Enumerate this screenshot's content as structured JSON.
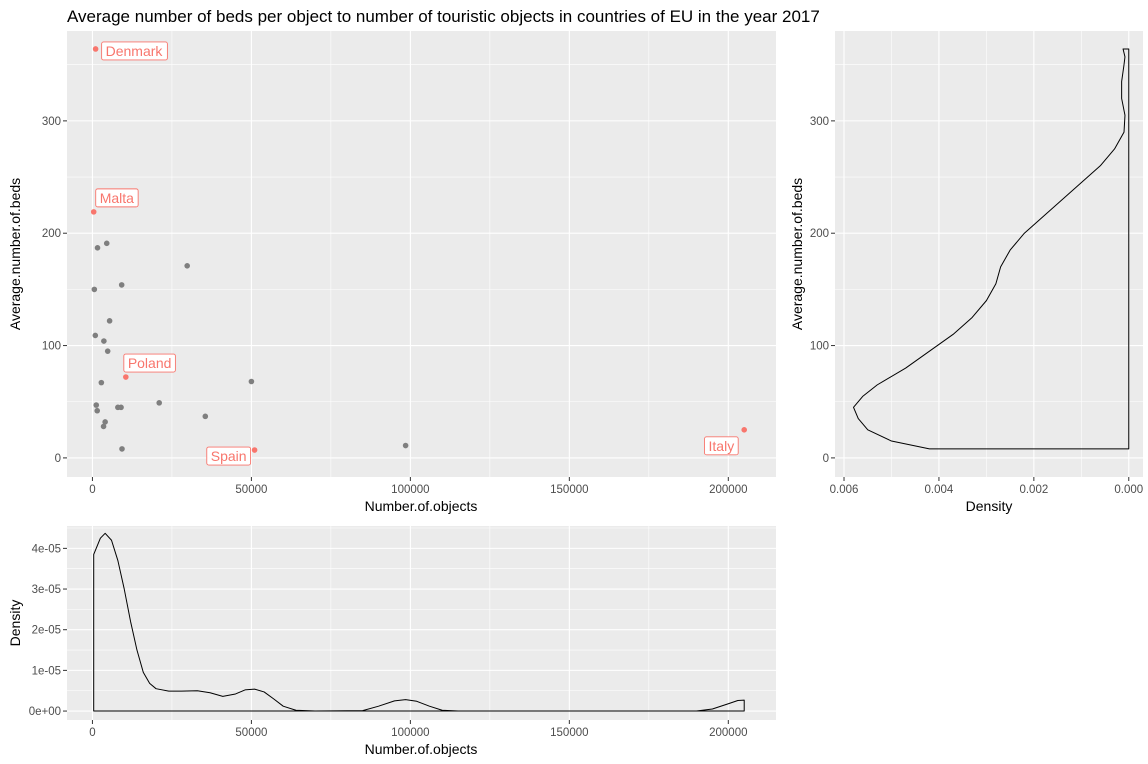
{
  "figure": {
    "title": "Average number of beds per object to number of touristic objects in countries of EU in the year 2017"
  },
  "colors": {
    "panel_bg": "#ebebeb",
    "grid_major": "#ffffff",
    "point_default": "#7f7f7f",
    "point_highlight": "#f8766d",
    "label_border": "#f8766d",
    "label_bg": "#ffffff",
    "density_line": "#000000",
    "tick_text": "#4d4d4d"
  },
  "chart_data": [
    {
      "id": "scatter",
      "type": "scatter",
      "xlabel": "Number.of.objects",
      "ylabel": "Average.number.of.beds",
      "xlim": [
        -8000,
        215000
      ],
      "ylim": [
        -17,
        380
      ],
      "xticks": [
        0,
        50000,
        100000,
        150000,
        200000
      ],
      "xtick_labels": [
        "0",
        "50000",
        "100000",
        "150000",
        "200000"
      ],
      "yticks": [
        0,
        100,
        200,
        300
      ],
      "ytick_labels": [
        "0",
        "100",
        "200",
        "300"
      ],
      "grid": true,
      "points": [
        {
          "x": 1000,
          "y": 364,
          "label": "Denmark",
          "highlight": true
        },
        {
          "x": 400,
          "y": 219,
          "label": "Malta",
          "highlight": true
        },
        {
          "x": 10500,
          "y": 72,
          "label": "Poland",
          "highlight": true
        },
        {
          "x": 51000,
          "y": 7,
          "label": "Spain",
          "highlight": true
        },
        {
          "x": 205000,
          "y": 25,
          "label": "Italy",
          "highlight": true
        },
        {
          "x": 1600,
          "y": 187,
          "highlight": false
        },
        {
          "x": 4500,
          "y": 191,
          "highlight": false
        },
        {
          "x": 29800,
          "y": 171,
          "highlight": false
        },
        {
          "x": 600,
          "y": 150,
          "highlight": false
        },
        {
          "x": 9200,
          "y": 154,
          "highlight": false
        },
        {
          "x": 5400,
          "y": 122,
          "highlight": false
        },
        {
          "x": 900,
          "y": 109,
          "highlight": false
        },
        {
          "x": 3600,
          "y": 104,
          "highlight": false
        },
        {
          "x": 4800,
          "y": 95,
          "highlight": false
        },
        {
          "x": 2800,
          "y": 67,
          "highlight": false
        },
        {
          "x": 50000,
          "y": 68,
          "highlight": false
        },
        {
          "x": 1200,
          "y": 47,
          "highlight": false
        },
        {
          "x": 1500,
          "y": 42,
          "highlight": false
        },
        {
          "x": 8000,
          "y": 45,
          "highlight": false
        },
        {
          "x": 9000,
          "y": 45,
          "highlight": false
        },
        {
          "x": 21000,
          "y": 49,
          "highlight": false
        },
        {
          "x": 35500,
          "y": 37,
          "highlight": false
        },
        {
          "x": 4000,
          "y": 32,
          "highlight": false
        },
        {
          "x": 3500,
          "y": 28,
          "highlight": false
        },
        {
          "x": 9300,
          "y": 8,
          "highlight": false
        },
        {
          "x": 98500,
          "y": 11,
          "highlight": false
        }
      ]
    },
    {
      "id": "density_y",
      "type": "area",
      "orientation": "horizontal",
      "xlabel": "Density",
      "ylabel": "Average.number.of.beds",
      "xlim": [
        0.00619,
        -0.0003
      ],
      "ylim": [
        -17,
        380
      ],
      "xticks": [
        0.006,
        0.004,
        0.002,
        0.0
      ],
      "xtick_labels": [
        "0.006",
        "0.004",
        "0.002",
        "0.000"
      ],
      "yticks": [
        0,
        100,
        200,
        300
      ],
      "ytick_labels": [
        "0",
        "100",
        "200",
        "300"
      ],
      "grid": true,
      "curve": [
        {
          "y": 8,
          "density": 0.0042
        },
        {
          "y": 15,
          "density": 0.005
        },
        {
          "y": 25,
          "density": 0.0055
        },
        {
          "y": 35,
          "density": 0.0057
        },
        {
          "y": 45,
          "density": 0.0058
        },
        {
          "y": 55,
          "density": 0.0056
        },
        {
          "y": 65,
          "density": 0.0053
        },
        {
          "y": 80,
          "density": 0.0047
        },
        {
          "y": 95,
          "density": 0.0042
        },
        {
          "y": 110,
          "density": 0.0037
        },
        {
          "y": 125,
          "density": 0.0033
        },
        {
          "y": 140,
          "density": 0.003
        },
        {
          "y": 155,
          "density": 0.0028
        },
        {
          "y": 170,
          "density": 0.0027
        },
        {
          "y": 185,
          "density": 0.0025
        },
        {
          "y": 200,
          "density": 0.0022
        },
        {
          "y": 215,
          "density": 0.0018
        },
        {
          "y": 230,
          "density": 0.0014
        },
        {
          "y": 245,
          "density": 0.001
        },
        {
          "y": 260,
          "density": 0.0006
        },
        {
          "y": 275,
          "density": 0.0003
        },
        {
          "y": 290,
          "density": 0.0001
        },
        {
          "y": 305,
          "density": 8e-05
        },
        {
          "y": 320,
          "density": 0.00015
        },
        {
          "y": 335,
          "density": 0.00015
        },
        {
          "y": 350,
          "density": 0.0001
        },
        {
          "y": 357,
          "density": 8e-05
        },
        {
          "y": 364,
          "density": 0.00012
        }
      ]
    },
    {
      "id": "density_x",
      "type": "area",
      "xlabel": "Number.of.objects",
      "ylabel": "Density",
      "xlim": [
        -8000,
        215000
      ],
      "ylim": [
        -2.2e-06,
        4.55e-05
      ],
      "xticks": [
        0,
        50000,
        100000,
        150000,
        200000
      ],
      "xtick_labels": [
        "0",
        "50000",
        "100000",
        "150000",
        "200000"
      ],
      "yticks": [
        0,
        1e-05,
        2e-05,
        3e-05,
        4e-05
      ],
      "ytick_labels": [
        "0e+00",
        "1e-05",
        "2e-05",
        "3e-05",
        "4e-05"
      ],
      "grid": true,
      "curve": [
        {
          "x": 400,
          "y": 3.85e-05
        },
        {
          "x": 2500,
          "y": 4.25e-05
        },
        {
          "x": 4000,
          "y": 4.37e-05
        },
        {
          "x": 6000,
          "y": 4.2e-05
        },
        {
          "x": 8000,
          "y": 3.7e-05
        },
        {
          "x": 10000,
          "y": 3e-05
        },
        {
          "x": 12000,
          "y": 2.2e-05
        },
        {
          "x": 14000,
          "y": 1.5e-05
        },
        {
          "x": 16000,
          "y": 9.5e-06
        },
        {
          "x": 18000,
          "y": 6.8e-06
        },
        {
          "x": 20000,
          "y": 5.5e-06
        },
        {
          "x": 24000,
          "y": 4.9e-06
        },
        {
          "x": 28000,
          "y": 4.9e-06
        },
        {
          "x": 33000,
          "y": 5e-06
        },
        {
          "x": 37000,
          "y": 4.5e-06
        },
        {
          "x": 41000,
          "y": 3.6e-06
        },
        {
          "x": 45000,
          "y": 4.2e-06
        },
        {
          "x": 48000,
          "y": 5.2e-06
        },
        {
          "x": 51000,
          "y": 5.4e-06
        },
        {
          "x": 54000,
          "y": 4.7e-06
        },
        {
          "x": 57000,
          "y": 3e-06
        },
        {
          "x": 60000,
          "y": 1.2e-06
        },
        {
          "x": 64000,
          "y": 2e-07
        },
        {
          "x": 70000,
          "y": 0.0
        },
        {
          "x": 85000,
          "y": 1e-07
        },
        {
          "x": 90000,
          "y": 1.2e-06
        },
        {
          "x": 95000,
          "y": 2.5e-06
        },
        {
          "x": 98500,
          "y": 2.8e-06
        },
        {
          "x": 102000,
          "y": 2.4e-06
        },
        {
          "x": 106000,
          "y": 1.2e-06
        },
        {
          "x": 110000,
          "y": 2e-07
        },
        {
          "x": 115000,
          "y": 0.0
        },
        {
          "x": 190000,
          "y": 0.0
        },
        {
          "x": 195000,
          "y": 5e-07
        },
        {
          "x": 200000,
          "y": 1.8e-06
        },
        {
          "x": 203000,
          "y": 2.6e-06
        },
        {
          "x": 205000,
          "y": 2.7e-06
        }
      ]
    }
  ]
}
